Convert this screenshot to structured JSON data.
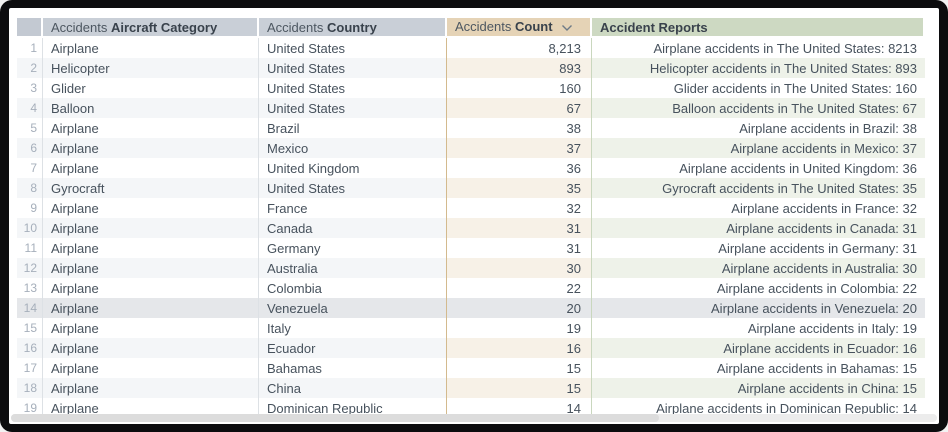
{
  "table": {
    "columns": [
      {
        "prefix": "",
        "name": ""
      },
      {
        "prefix": "Accidents",
        "name": "Aircraft Category"
      },
      {
        "prefix": "Accidents",
        "name": "Country"
      },
      {
        "prefix": "Accidents",
        "name": "Count",
        "sort": "descending"
      },
      {
        "prefix": "",
        "name": "Accident Reports"
      }
    ],
    "highlighted_row": 14,
    "rows": [
      {
        "num": 1,
        "category": "Airplane",
        "country": "United States",
        "count": "8,213",
        "report": "Airplane accidents in The United States: 8213"
      },
      {
        "num": 2,
        "category": "Helicopter",
        "country": "United States",
        "count": "893",
        "report": "Helicopter accidents in The United States: 893"
      },
      {
        "num": 3,
        "category": "Glider",
        "country": "United States",
        "count": "160",
        "report": "Glider accidents in The United States: 160"
      },
      {
        "num": 4,
        "category": "Balloon",
        "country": "United States",
        "count": "67",
        "report": "Balloon accidents in The United States: 67"
      },
      {
        "num": 5,
        "category": "Airplane",
        "country": "Brazil",
        "count": "38",
        "report": "Airplane accidents in Brazil: 38"
      },
      {
        "num": 6,
        "category": "Airplane",
        "country": "Mexico",
        "count": "37",
        "report": "Airplane accidents in Mexico: 37"
      },
      {
        "num": 7,
        "category": "Airplane",
        "country": "United Kingdom",
        "count": "36",
        "report": "Airplane accidents in United Kingdom: 36"
      },
      {
        "num": 8,
        "category": "Gyrocraft",
        "country": "United States",
        "count": "35",
        "report": "Gyrocraft accidents in The United States: 35"
      },
      {
        "num": 9,
        "category": "Airplane",
        "country": "France",
        "count": "32",
        "report": "Airplane accidents in France: 32"
      },
      {
        "num": 10,
        "category": "Airplane",
        "country": "Canada",
        "count": "31",
        "report": "Airplane accidents in Canada: 31"
      },
      {
        "num": 11,
        "category": "Airplane",
        "country": "Germany",
        "count": "31",
        "report": "Airplane accidents in Germany: 31"
      },
      {
        "num": 12,
        "category": "Airplane",
        "country": "Australia",
        "count": "30",
        "report": "Airplane accidents in Australia: 30"
      },
      {
        "num": 13,
        "category": "Airplane",
        "country": "Colombia",
        "count": "22",
        "report": "Airplane accidents in Colombia: 22"
      },
      {
        "num": 14,
        "category": "Airplane",
        "country": "Venezuela",
        "count": "20",
        "report": "Airplane accidents in Venezuela: 20"
      },
      {
        "num": 15,
        "category": "Airplane",
        "country": "Italy",
        "count": "19",
        "report": "Airplane accidents in Italy: 19"
      },
      {
        "num": 16,
        "category": "Airplane",
        "country": "Ecuador",
        "count": "16",
        "report": "Airplane accidents in Ecuador: 16"
      },
      {
        "num": 17,
        "category": "Airplane",
        "country": "Bahamas",
        "count": "15",
        "report": "Airplane accidents in Bahamas: 15"
      },
      {
        "num": 18,
        "category": "Airplane",
        "country": "China",
        "count": "15",
        "report": "Airplane accidents in China: 15"
      },
      {
        "num": 19,
        "category": "Airplane",
        "country": "Dominican Republic",
        "count": "14",
        "report": "Airplane accidents in Dominican Republic: 14"
      }
    ]
  },
  "colors": {
    "frame": "#0c0c0e",
    "header_neutral": "#c9cfd7",
    "header_rownum": "#c3c9d2",
    "header_count": "#e5d3b6",
    "header_reports": "#cdd9c2",
    "stripe_neutral": "#f4f6f8",
    "stripe_count": "#f7f1e7",
    "stripe_reports": "#eef2e9",
    "row_highlight": "#e5e7ea",
    "border_count": "#d3ba8e",
    "border_reports": "#c9d7be",
    "text_primary": "#47525d",
    "text_rownum": "#a6afbb"
  }
}
